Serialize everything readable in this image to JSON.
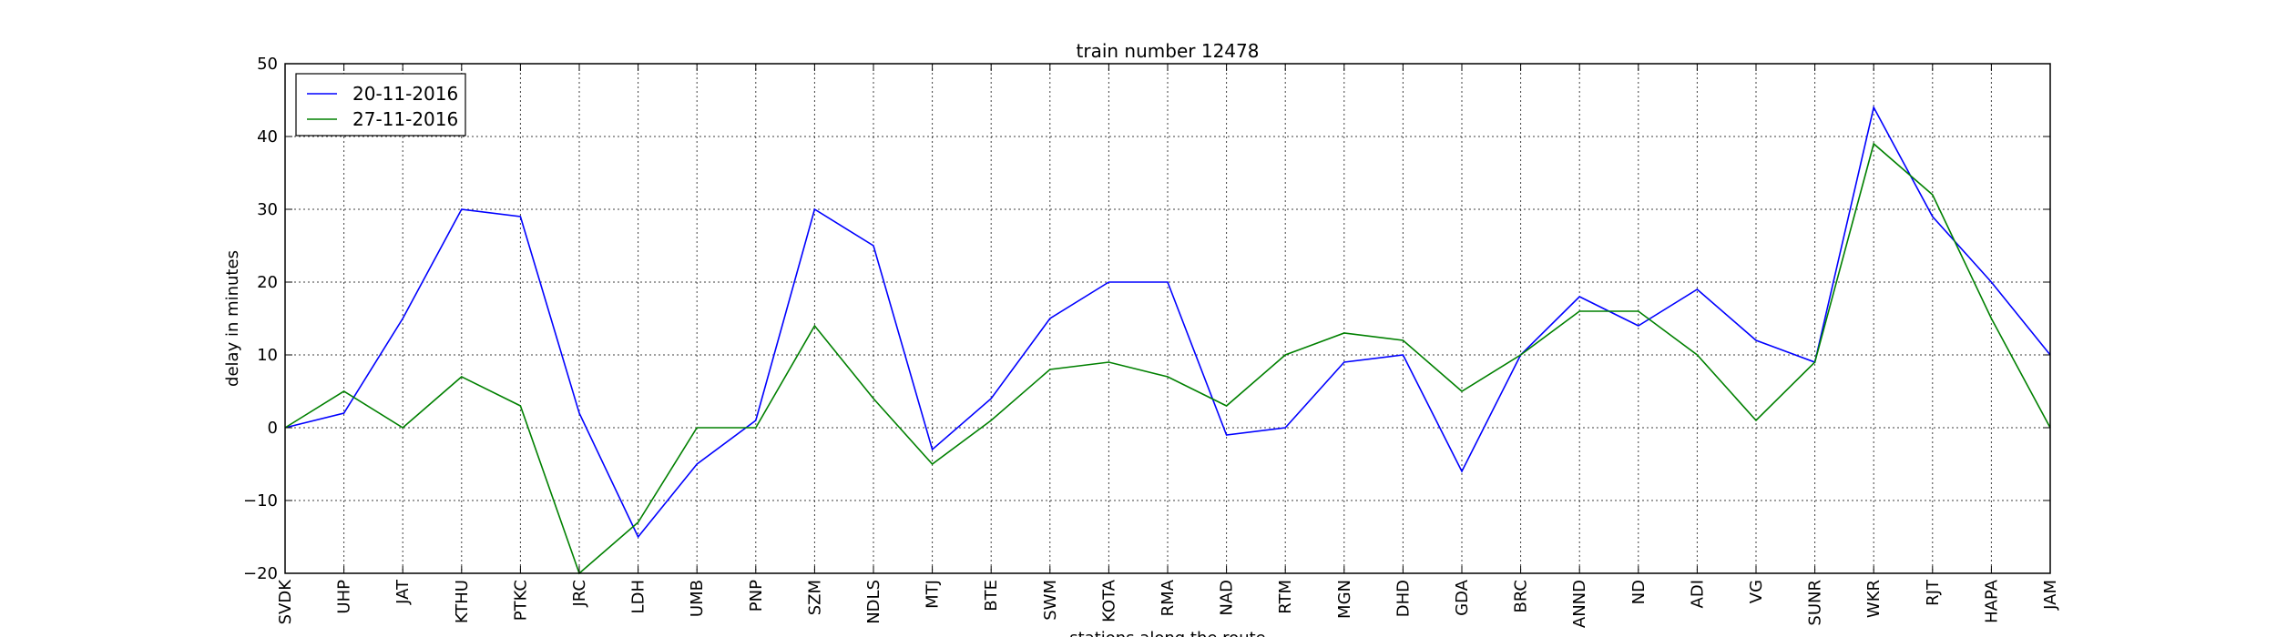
{
  "chart_data": {
    "type": "line",
    "title": "train number 12478",
    "xlabel": "stations along the route",
    "ylabel": "delay in minutes",
    "categories": [
      "SVDK",
      "UHP",
      "JAT",
      "KTHU",
      "PTKC",
      "JRC",
      "LDH",
      "UMB",
      "PNP",
      "SZM",
      "NDLS",
      "MTJ",
      "BTE",
      "SWM",
      "KOTA",
      "RMA",
      "NAD",
      "RTM",
      "MGN",
      "DHD",
      "GDA",
      "BRC",
      "ANND",
      "ND",
      "ADI",
      "VG",
      "SUNR",
      "WKR",
      "RJT",
      "HAPA",
      "JAM"
    ],
    "ylim": [
      -20,
      50
    ],
    "yticks": [
      -20,
      -10,
      0,
      10,
      20,
      30,
      40,
      50
    ],
    "yticklabels": [
      "−20",
      "−10",
      "0",
      "10",
      "20",
      "30",
      "40",
      "50"
    ],
    "grid": true,
    "legend_position": "top-left",
    "series": [
      {
        "name": "20-11-2016",
        "color": "#0000ff",
        "values": [
          0,
          2,
          15,
          30,
          29,
          2,
          -15,
          -5,
          1,
          30,
          25,
          -3,
          4,
          15,
          20,
          20,
          -1,
          0,
          9,
          10,
          -6,
          10,
          18,
          14,
          19,
          12,
          9,
          44,
          29,
          20,
          10
        ]
      },
      {
        "name": "27-11-2016",
        "color": "#008000",
        "values": [
          0,
          5,
          0,
          7,
          3,
          -20,
          -13,
          0,
          0,
          14,
          4,
          -5,
          1,
          8,
          9,
          7,
          3,
          10,
          13,
          12,
          5,
          10,
          16,
          16,
          10,
          1,
          9,
          39,
          32,
          15,
          0
        ]
      }
    ]
  }
}
